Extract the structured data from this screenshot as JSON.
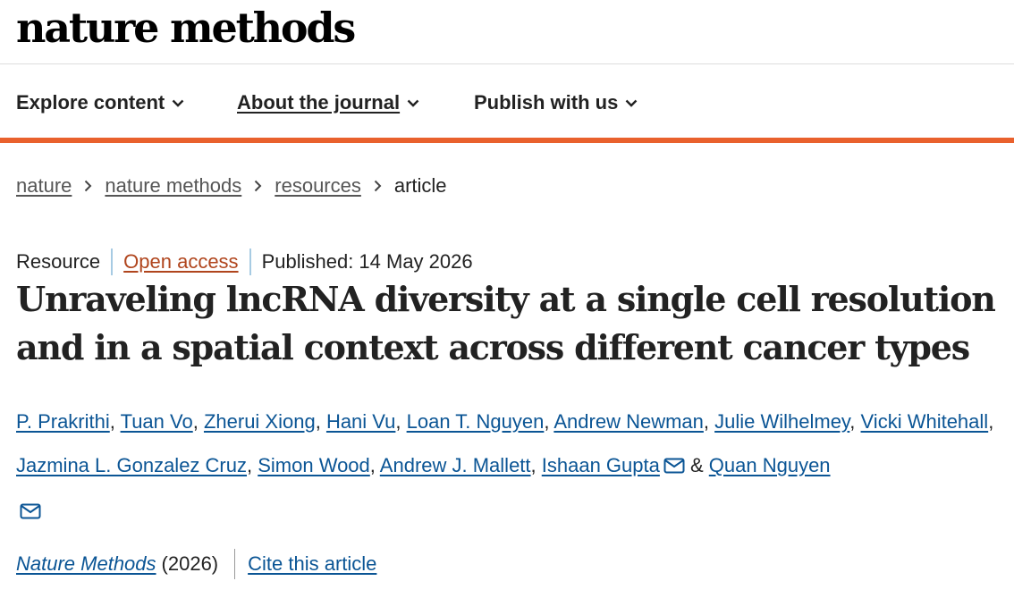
{
  "header": {
    "logo_text": "nature methods"
  },
  "nav": {
    "items": [
      {
        "label": "Explore content"
      },
      {
        "label": "About the journal"
      },
      {
        "label": "Publish with us"
      }
    ]
  },
  "breadcrumb": {
    "items": [
      "nature",
      "nature methods",
      "resources",
      "article"
    ]
  },
  "article": {
    "type": "Resource",
    "access": "Open access",
    "published": "Published: 14 May 2026",
    "title": "Unraveling lncRNA diversity at a single cell resolution and in a spatial context across different cancer types",
    "authors": [
      "P. Prakrithi",
      "Tuan Vo",
      "Zherui Xiong",
      "Hani Vu",
      "Loan T. Nguyen",
      "Andrew Newman",
      "Julie Wilhelmey",
      "Vicki Whitehall",
      "Jazmina L. Gonzalez Cruz",
      "Simon Wood",
      "Andrew J. Mallett",
      "Ishaan Gupta",
      "Quan Nguyen"
    ],
    "journal_name": "Nature Methods",
    "year": "(2026)",
    "cite_label": "Cite this article"
  },
  "icons": {
    "chevron": "chevron-down-icon",
    "separator": "chevron-right-icon",
    "mail": "mail-icon"
  },
  "colors": {
    "accent": "#e9612d",
    "link": "#0b5595",
    "open_access": "#b0451d"
  }
}
